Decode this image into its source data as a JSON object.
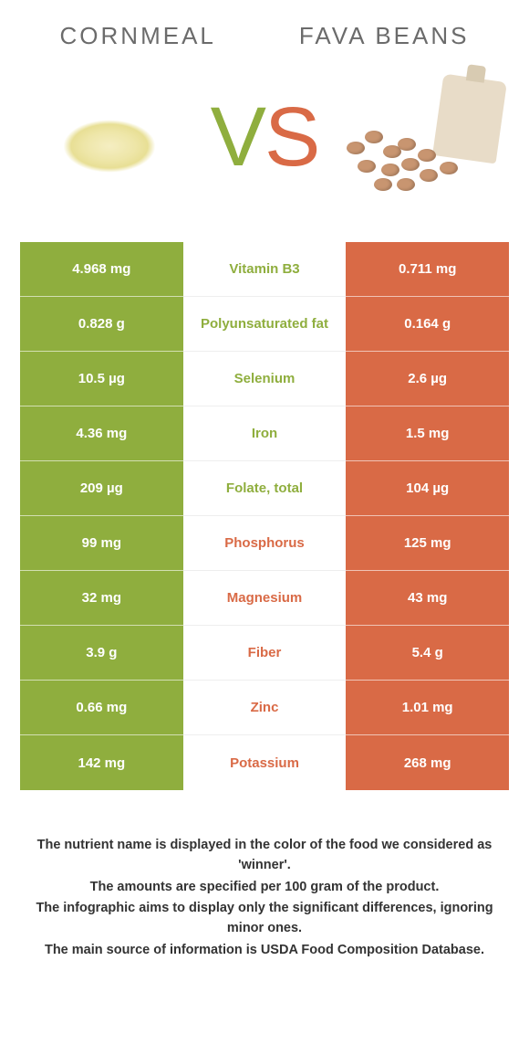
{
  "colors": {
    "left_bg": "#8fae3e",
    "right_bg": "#d96a46",
    "mid_left_winner": "#8fae3e",
    "mid_right_winner": "#d96a46",
    "header_text": "#6b6b6b",
    "footer_text": "#333333",
    "bg": "#ffffff"
  },
  "header": {
    "left": "Cornmeal",
    "right": "Fava beans"
  },
  "vs": {
    "v": "V",
    "s": "S"
  },
  "rows": [
    {
      "left": "4.968 mg",
      "label": "Vitamin B3",
      "right": "0.711 mg",
      "winner": "left"
    },
    {
      "left": "0.828 g",
      "label": "Polyunsaturated fat",
      "right": "0.164 g",
      "winner": "left"
    },
    {
      "left": "10.5 µg",
      "label": "Selenium",
      "right": "2.6 µg",
      "winner": "left"
    },
    {
      "left": "4.36 mg",
      "label": "Iron",
      "right": "1.5 mg",
      "winner": "left"
    },
    {
      "left": "209 µg",
      "label": "Folate, total",
      "right": "104 µg",
      "winner": "left"
    },
    {
      "left": "99 mg",
      "label": "Phosphorus",
      "right": "125 mg",
      "winner": "right"
    },
    {
      "left": "32 mg",
      "label": "Magnesium",
      "right": "43 mg",
      "winner": "right"
    },
    {
      "left": "3.9 g",
      "label": "Fiber",
      "right": "5.4 g",
      "winner": "right"
    },
    {
      "left": "0.66 mg",
      "label": "Zinc",
      "right": "1.01 mg",
      "winner": "right"
    },
    {
      "left": "142 mg",
      "label": "Potassium",
      "right": "268 mg",
      "winner": "right"
    }
  ],
  "footer": {
    "l1": "The nutrient name is displayed in the color of the food we considered as 'winner'.",
    "l2": "The amounts are specified per 100 gram of the product.",
    "l3": "The infographic aims to display only the significant differences, ignoring minor ones.",
    "l4": "The main source of information is USDA Food Composition Database."
  }
}
